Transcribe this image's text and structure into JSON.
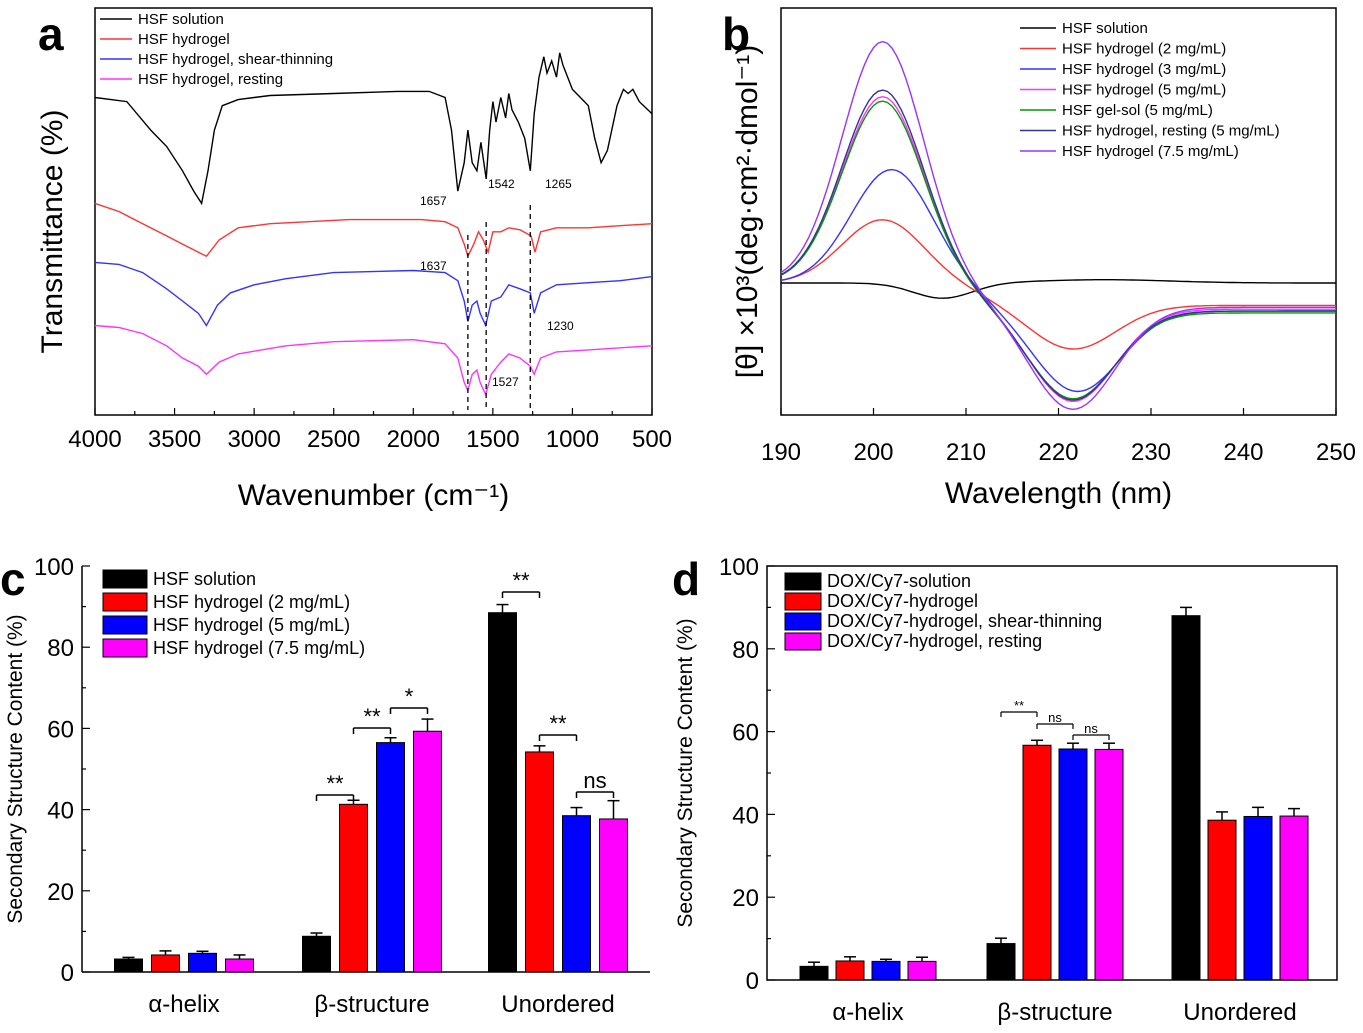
{
  "chart_data": [
    {
      "panel": "a",
      "type": "line",
      "xlabel": "Wavenumber (cm⁻¹)",
      "ylabel": "Transmittance  (%)",
      "xlim": [
        4000,
        500
      ],
      "xticks": [
        "4000",
        "3500",
        "3000",
        "2500",
        "2000",
        "1500",
        "1000",
        "500"
      ],
      "xtick_values": [
        4000,
        3500,
        3000,
        2500,
        2000,
        1500,
        1000,
        500
      ],
      "series": [
        {
          "name": "HSF solution",
          "color": "#000000",
          "offset": 0.78,
          "points": [
            [
              4000,
              0.78
            ],
            [
              3800,
              0.77
            ],
            [
              3650,
              0.7
            ],
            [
              3550,
              0.66
            ],
            [
              3450,
              0.6
            ],
            [
              3380,
              0.55
            ],
            [
              3330,
              0.52
            ],
            [
              3290,
              0.6
            ],
            [
              3250,
              0.7
            ],
            [
              3200,
              0.76
            ],
            [
              3100,
              0.775
            ],
            [
              3000,
              0.78
            ],
            [
              2900,
              0.785
            ],
            [
              2500,
              0.79
            ],
            [
              2100,
              0.795
            ],
            [
              1900,
              0.795
            ],
            [
              1800,
              0.78
            ],
            [
              1760,
              0.7
            ],
            [
              1720,
              0.55
            ],
            [
              1680,
              0.62
            ],
            [
              1657,
              0.7
            ],
            [
              1630,
              0.62
            ],
            [
              1600,
              0.6
            ],
            [
              1575,
              0.67
            ],
            [
              1542,
              0.58
            ],
            [
              1520,
              0.7
            ],
            [
              1500,
              0.77
            ],
            [
              1480,
              0.72
            ],
            [
              1450,
              0.78
            ],
            [
              1420,
              0.73
            ],
            [
              1400,
              0.79
            ],
            [
              1380,
              0.75
            ],
            [
              1340,
              0.72
            ],
            [
              1300,
              0.68
            ],
            [
              1265,
              0.6
            ],
            [
              1240,
              0.74
            ],
            [
              1210,
              0.83
            ],
            [
              1180,
              0.88
            ],
            [
              1160,
              0.84
            ],
            [
              1130,
              0.87
            ],
            [
              1100,
              0.83
            ],
            [
              1080,
              0.89
            ],
            [
              1060,
              0.86
            ],
            [
              1000,
              0.8
            ],
            [
              950,
              0.78
            ],
            [
              900,
              0.76
            ],
            [
              860,
              0.68
            ],
            [
              820,
              0.62
            ],
            [
              780,
              0.65
            ],
            [
              720,
              0.76
            ],
            [
              680,
              0.8
            ],
            [
              650,
              0.79
            ],
            [
              620,
              0.8
            ],
            [
              580,
              0.77
            ],
            [
              500,
              0.74
            ]
          ]
        },
        {
          "name": "HSF hydrogel",
          "color": "#ff3333",
          "offset": 0.5,
          "points": [
            [
              4000,
              0.52
            ],
            [
              3850,
              0.5
            ],
            [
              3700,
              0.47
            ],
            [
              3550,
              0.44
            ],
            [
              3450,
              0.42
            ],
            [
              3350,
              0.4
            ],
            [
              3300,
              0.39
            ],
            [
              3220,
              0.43
            ],
            [
              3100,
              0.46
            ],
            [
              2900,
              0.47
            ],
            [
              2400,
              0.48
            ],
            [
              1950,
              0.48
            ],
            [
              1800,
              0.475
            ],
            [
              1720,
              0.46
            ],
            [
              1680,
              0.42
            ],
            [
              1657,
              0.39
            ],
            [
              1620,
              0.42
            ],
            [
              1590,
              0.45
            ],
            [
              1560,
              0.43
            ],
            [
              1530,
              0.4
            ],
            [
              1500,
              0.45
            ],
            [
              1450,
              0.45
            ],
            [
              1400,
              0.46
            ],
            [
              1330,
              0.455
            ],
            [
              1260,
              0.44
            ],
            [
              1235,
              0.4
            ],
            [
              1200,
              0.45
            ],
            [
              1100,
              0.46
            ],
            [
              900,
              0.46
            ],
            [
              700,
              0.465
            ],
            [
              500,
              0.47
            ]
          ]
        },
        {
          "name": "HSF hydrogel, shear-thinning",
          "color": "#3333ff",
          "offset": 0.35,
          "points": [
            [
              4000,
              0.375
            ],
            [
              3850,
              0.37
            ],
            [
              3700,
              0.35
            ],
            [
              3550,
              0.31
            ],
            [
              3450,
              0.28
            ],
            [
              3350,
              0.25
            ],
            [
              3300,
              0.22
            ],
            [
              3230,
              0.27
            ],
            [
              3150,
              0.3
            ],
            [
              3000,
              0.32
            ],
            [
              2800,
              0.335
            ],
            [
              2500,
              0.35
            ],
            [
              2000,
              0.355
            ],
            [
              1800,
              0.35
            ],
            [
              1720,
              0.33
            ],
            [
              1680,
              0.28
            ],
            [
              1657,
              0.23
            ],
            [
              1630,
              0.27
            ],
            [
              1600,
              0.28
            ],
            [
              1580,
              0.25
            ],
            [
              1545,
              0.22
            ],
            [
              1510,
              0.28
            ],
            [
              1450,
              0.29
            ],
            [
              1400,
              0.32
            ],
            [
              1330,
              0.31
            ],
            [
              1265,
              0.3
            ],
            [
              1240,
              0.25
            ],
            [
              1200,
              0.3
            ],
            [
              1100,
              0.32
            ],
            [
              900,
              0.325
            ],
            [
              700,
              0.33
            ],
            [
              500,
              0.34
            ]
          ]
        },
        {
          "name": "HSF hydrogel, resting",
          "color": "#ff33ff",
          "offset": 0.2,
          "points": [
            [
              4000,
              0.22
            ],
            [
              3850,
              0.215
            ],
            [
              3700,
              0.2
            ],
            [
              3550,
              0.17
            ],
            [
              3450,
              0.14
            ],
            [
              3350,
              0.12
            ],
            [
              3300,
              0.1
            ],
            [
              3220,
              0.13
            ],
            [
              3100,
              0.15
            ],
            [
              2800,
              0.17
            ],
            [
              2500,
              0.18
            ],
            [
              2000,
              0.185
            ],
            [
              1800,
              0.175
            ],
            [
              1720,
              0.14
            ],
            [
              1680,
              0.08
            ],
            [
              1657,
              0.06
            ],
            [
              1630,
              0.1
            ],
            [
              1600,
              0.11
            ],
            [
              1580,
              0.08
            ],
            [
              1545,
              0.05
            ],
            [
              1510,
              0.1
            ],
            [
              1450,
              0.13
            ],
            [
              1400,
              0.15
            ],
            [
              1330,
              0.14
            ],
            [
              1265,
              0.12
            ],
            [
              1240,
              0.1
            ],
            [
              1200,
              0.14
            ],
            [
              1100,
              0.155
            ],
            [
              900,
              0.16
            ],
            [
              700,
              0.165
            ],
            [
              500,
              0.17
            ]
          ]
        }
      ],
      "annotations": [
        "1657",
        "1542",
        "1265",
        "1637",
        "1230",
        "1527"
      ]
    },
    {
      "panel": "b",
      "type": "line",
      "xlabel": "Wavelength (nm)",
      "ylabel": "[θ] ×10³(deg·cm²·dmol⁻¹)",
      "xlim": [
        190,
        250
      ],
      "xticks": [
        "190",
        "200",
        "210",
        "220",
        "230",
        "240",
        "250"
      ],
      "xtick_values": [
        190,
        200,
        210,
        220,
        230,
        240,
        250
      ],
      "series": [
        {
          "name": "HSF solution",
          "color": "#000000",
          "peak": [
            201,
            0.0
          ],
          "trough": [
            207.5,
            -0.7
          ],
          "end": 0.0
        },
        {
          "name": "HSF hydrogel (2 mg/mL)",
          "color": "#ff3333",
          "peak": [
            201,
            2.9
          ],
          "trough": [
            221.5,
            -2.5
          ],
          "end": -1.2
        },
        {
          "name": "HSF hydrogel (3 mg/mL)",
          "color": "#3333ff",
          "peak": [
            202,
            5.2
          ],
          "trough": [
            222,
            -4.3
          ],
          "end": -1.5
        },
        {
          "name": "HSF hydrogel (5 mg/mL)",
          "color": "#ff33ff",
          "peak": [
            201,
            8.5
          ],
          "trough": [
            221.5,
            -4.8
          ],
          "end": -1.4
        },
        {
          "name": "HSF gel-sol (5 mg/mL)",
          "color": "#009900",
          "peak": [
            201,
            8.3
          ],
          "trough": [
            221.5,
            -4.6
          ],
          "end": -1.6
        },
        {
          "name": "HSF hydrogel, resting (5 mg/mL)",
          "color": "#333399",
          "peak": [
            201,
            8.8
          ],
          "trough": [
            221.5,
            -4.7
          ],
          "end": -1.5
        },
        {
          "name": "HSF hydrogel (7.5 mg/mL)",
          "color": "#9933ff",
          "peak": [
            201,
            11.0
          ],
          "trough": [
            221.5,
            -5.2
          ],
          "end": -1.3
        }
      ]
    },
    {
      "panel": "c",
      "type": "bar",
      "ylabel": "Secondary  Structure Content  (%)",
      "ylim": [
        0,
        100
      ],
      "yticks": [
        "0",
        "20",
        "40",
        "60",
        "80",
        "100"
      ],
      "categories": [
        "α-helix",
        "β-structure",
        "Unordered"
      ],
      "series": [
        {
          "name": "HSF  solution",
          "color": "#000000",
          "values": [
            3.2,
            8.8,
            88.5
          ],
          "errors": [
            0.4,
            0.8,
            2.0
          ]
        },
        {
          "name": "HSF  hydrogel (2 mg/mL)",
          "color": "#ff0000",
          "values": [
            4.2,
            41.3,
            54.2
          ],
          "errors": [
            1.0,
            1.0,
            1.5
          ]
        },
        {
          "name": "HSF  hydrogel (5 mg/mL)",
          "color": "#0000ff",
          "values": [
            4.6,
            56.5,
            38.5
          ],
          "errors": [
            0.5,
            1.2,
            2.0
          ]
        },
        {
          "name": "HSF  hydrogel (7.5 mg/mL)",
          "color": "#ff00ff",
          "values": [
            3.2,
            59.3,
            37.7
          ],
          "errors": [
            1.0,
            3.0,
            4.5
          ]
        }
      ],
      "significance": [
        "**",
        "**",
        "*",
        "**",
        "**",
        "ns"
      ]
    },
    {
      "panel": "d",
      "type": "bar",
      "ylabel": "Secondary Structure Content  (%)",
      "ylim": [
        0,
        100
      ],
      "yticks": [
        "0",
        "20",
        "40",
        "60",
        "80",
        "100"
      ],
      "categories": [
        "α-helix",
        "β-structure",
        "Unordered"
      ],
      "series": [
        {
          "name": "DOX/Cy7-solution",
          "color": "#000000",
          "values": [
            3.3,
            8.8,
            88.0
          ],
          "errors": [
            1.0,
            1.3,
            2.0
          ]
        },
        {
          "name": "DOX/Cy7-hydrogel",
          "color": "#ff0000",
          "values": [
            4.6,
            56.7,
            38.6
          ],
          "errors": [
            1.0,
            1.2,
            2.0
          ]
        },
        {
          "name": "DOX/Cy7-hydrogel, shear-thinning",
          "color": "#0000ff",
          "values": [
            4.5,
            55.8,
            39.5
          ],
          "errors": [
            0.5,
            1.4,
            2.2
          ]
        },
        {
          "name": "DOX/Cy7-hydrogel, resting",
          "color": "#ff00ff",
          "values": [
            4.5,
            55.7,
            39.6
          ],
          "errors": [
            1.0,
            1.5,
            1.8
          ]
        }
      ],
      "significance": [
        "**",
        "ns",
        "ns"
      ]
    }
  ],
  "panel_labels": [
    "a",
    "b",
    "c",
    "d"
  ]
}
